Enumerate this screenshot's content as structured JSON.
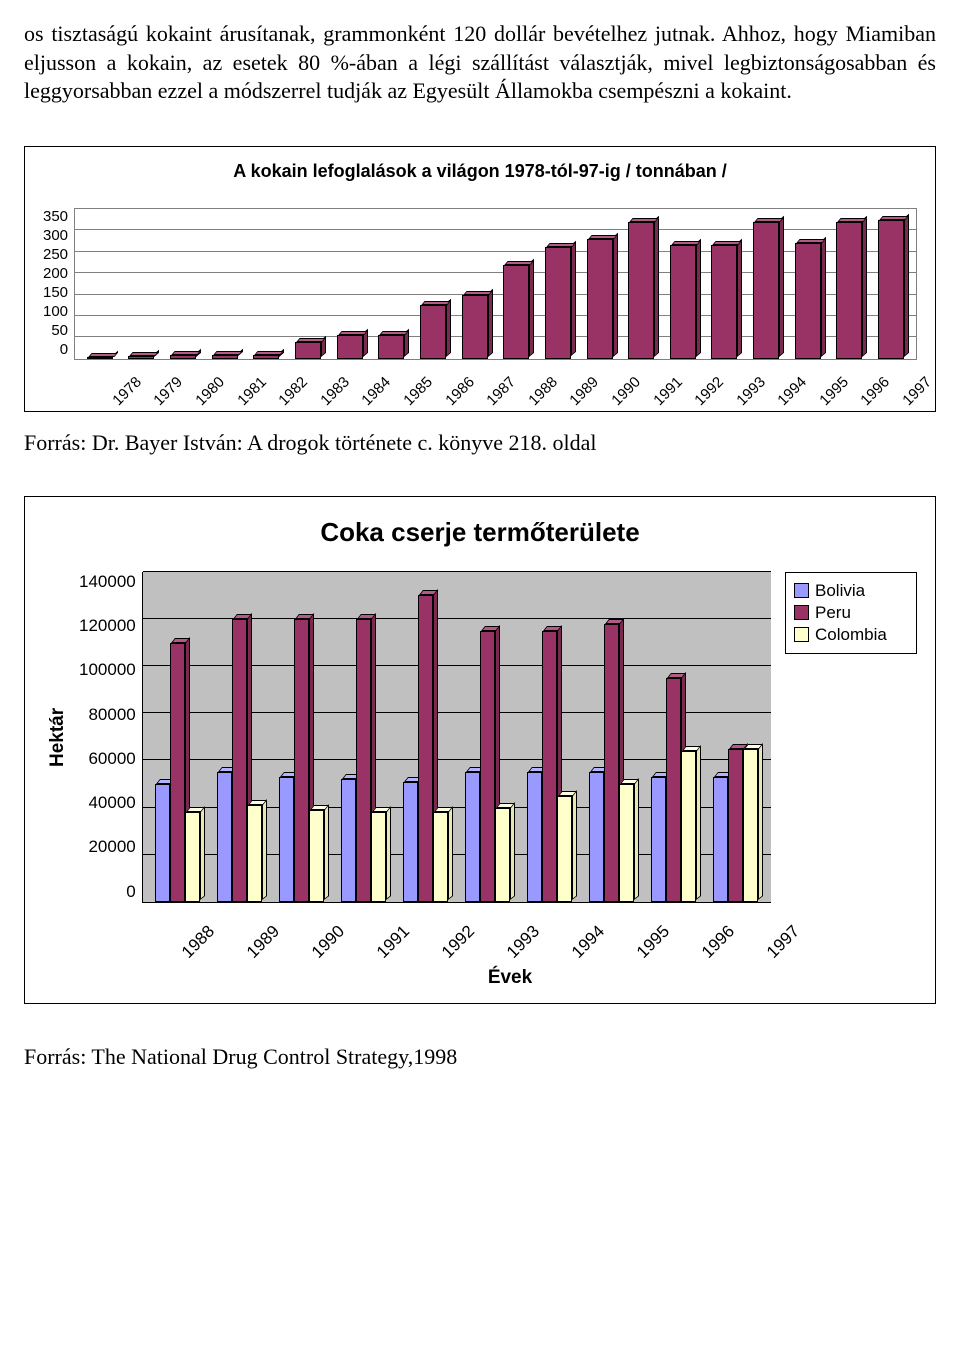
{
  "paragraph": "os tisztaságú kokaint árusítanak, grammonként 120 dollár bevételhez jutnak. Ahhoz, hogy Miamiban eljusson a kokain, az esetek 80 %-ában a légi szállítást választják, mivel legbiztonságosabban és leggyorsabban ezzel a módszerrel tudják az Egyesült Államokba csempészni a kokaint.",
  "chart1": {
    "type": "bar",
    "title": "A kokain lefoglalások a világon 1978-tól-97-ig / tonnában /",
    "categories": [
      "1978",
      "1979",
      "1980",
      "1981",
      "1982",
      "1983",
      "1984",
      "1985",
      "1986",
      "1987",
      "1988",
      "1989",
      "1990",
      "1991",
      "1992",
      "1993",
      "1994",
      "1995",
      "1996",
      "1997"
    ],
    "values": [
      5,
      6,
      10,
      8,
      10,
      40,
      55,
      55,
      125,
      150,
      220,
      260,
      280,
      320,
      265,
      265,
      320,
      270,
      320,
      325
    ],
    "ylim": [
      0,
      350
    ],
    "yticks": [
      350,
      300,
      250,
      200,
      150,
      100,
      50,
      0
    ],
    "bar_face_color": "#993366",
    "bar_top_color": "#b35a86",
    "bar_side_color": "#7a2951",
    "grid_color": "#808080",
    "background_color": "#ffffff",
    "title_fontsize": 18,
    "label_fontsize": 15
  },
  "caption1": "Forrás: Dr. Bayer István: A drogok története c. könyve 218. oldal",
  "chart2": {
    "type": "grouped-bar",
    "title": "Coka cserje termőterülete",
    "xlabel": "Évek",
    "ylabel": "Hektár",
    "categories": [
      "1988",
      "1989",
      "1990",
      "1991",
      "1992",
      "1993",
      "1994",
      "1995",
      "1996",
      "1997"
    ],
    "series": [
      {
        "name": "Bolivia",
        "color_face": "#9999ff",
        "color_top": "#b3b3ff",
        "color_side": "#7a7acc",
        "values": [
          50000,
          55000,
          53000,
          52000,
          51000,
          55000,
          55000,
          55000,
          53000,
          53000
        ]
      },
      {
        "name": "Peru",
        "color_face": "#993366",
        "color_top": "#b35a86",
        "color_side": "#7a2951",
        "values": [
          110000,
          120000,
          120000,
          120000,
          130000,
          115000,
          115000,
          118000,
          95000,
          65000
        ]
      },
      {
        "name": "Colombia",
        "color_face": "#ffffcc",
        "color_top": "#ffffe6",
        "color_side": "#e8e8b5",
        "values": [
          38000,
          41000,
          39000,
          38000,
          38000,
          40000,
          45000,
          50000,
          64000,
          65000
        ]
      }
    ],
    "ylim": [
      0,
      140000
    ],
    "yticks": [
      140000,
      120000,
      100000,
      80000,
      60000,
      40000,
      20000,
      0
    ],
    "plot_background": "#c0c0c0",
    "grid_color": "#000000",
    "title_fontsize": 26,
    "axis_label_fontsize": 19,
    "tick_fontsize": 17,
    "legend_items": [
      "Bolivia",
      "Peru",
      "Colombia"
    ]
  },
  "caption2": "Forrás: The National Drug Control Strategy,1998"
}
